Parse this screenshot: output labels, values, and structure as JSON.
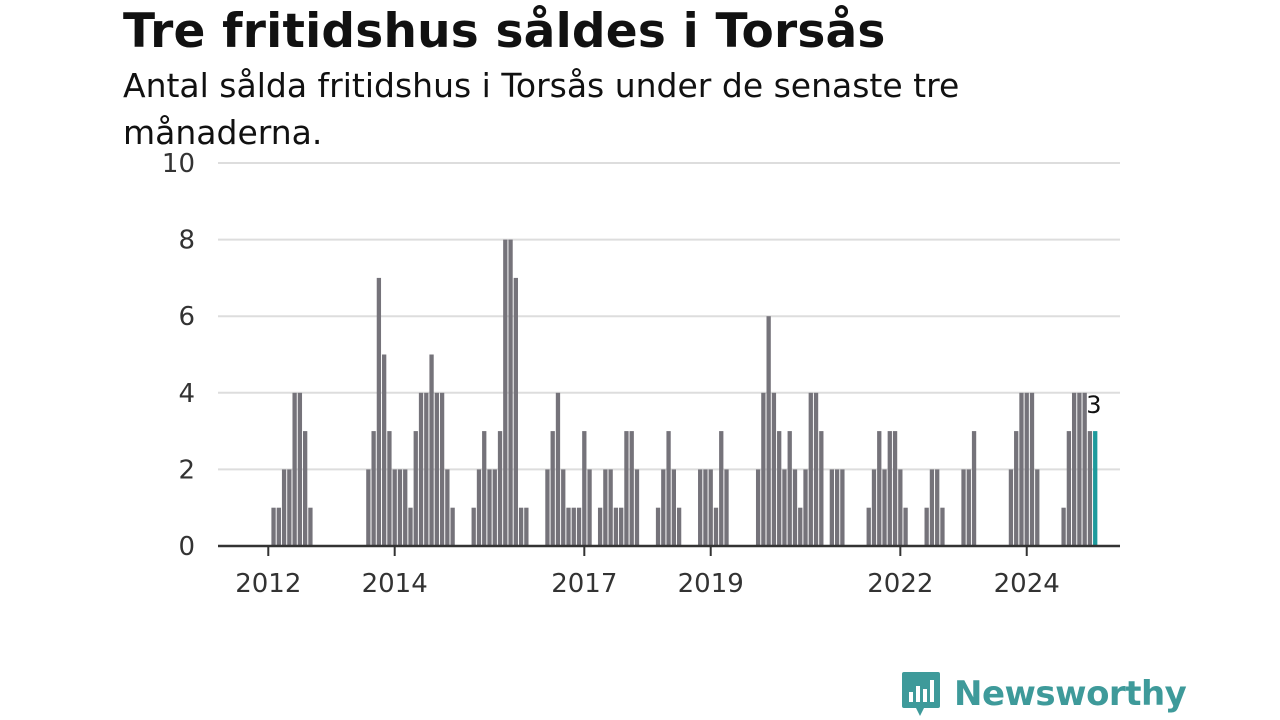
{
  "header": {
    "title": "Tre fritidshus såldes i Torsås",
    "subtitle": "Antal sålda fritidshus i Torsås under de senaste tre månaderna."
  },
  "branding": {
    "name": "Newsworthy",
    "color": "#3e9a9a",
    "icon": "bar-chart-speech-bubble-icon"
  },
  "colors": {
    "bar": "#75737a",
    "highlight": "#1d9a9c",
    "grid": "#dddddd",
    "axis": "#333333",
    "text": "#333333"
  },
  "chart_data": {
    "type": "bar",
    "title": "Tre fritidshus såldes i Torsås",
    "subtitle": "Antal sålda fritidshus i Torsås under de senaste tre månaderna.",
    "xlabel": "",
    "ylabel": "",
    "ylim": [
      0,
      10
    ],
    "yticks": [
      0,
      2,
      4,
      6,
      8,
      10
    ],
    "grid": true,
    "x_tick_labels": [
      {
        "label": "2012",
        "index": 8
      },
      {
        "label": "2014",
        "index": 32
      },
      {
        "label": "2017",
        "index": 68
      },
      {
        "label": "2019",
        "index": 92
      },
      {
        "label": "2022",
        "index": 128
      },
      {
        "label": "2024",
        "index": 152
      }
    ],
    "highlight_label": "3",
    "values": [
      null,
      null,
      null,
      null,
      null,
      null,
      null,
      null,
      null,
      1,
      1,
      2,
      2,
      4,
      4,
      3,
      1,
      null,
      null,
      null,
      null,
      null,
      null,
      null,
      null,
      null,
      null,
      2,
      3,
      7,
      5,
      3,
      2,
      2,
      2,
      1,
      3,
      4,
      4,
      5,
      4,
      4,
      2,
      1,
      null,
      null,
      null,
      1,
      2,
      3,
      2,
      2,
      3,
      8,
      8,
      7,
      1,
      1,
      null,
      null,
      null,
      2,
      3,
      4,
      2,
      1,
      1,
      1,
      3,
      2,
      null,
      1,
      2,
      2,
      1,
      1,
      3,
      3,
      2,
      null,
      null,
      null,
      1,
      2,
      3,
      2,
      1,
      null,
      null,
      null,
      2,
      2,
      2,
      1,
      3,
      2,
      null,
      null,
      null,
      null,
      null,
      2,
      4,
      6,
      4,
      3,
      2,
      3,
      2,
      1,
      2,
      4,
      4,
      3,
      null,
      2,
      2,
      2,
      null,
      null,
      null,
      null,
      1,
      2,
      3,
      2,
      3,
      3,
      2,
      1,
      null,
      null,
      null,
      1,
      2,
      2,
      1,
      null,
      null,
      null,
      2,
      2,
      3,
      null,
      null,
      null,
      null,
      null,
      null,
      2,
      3,
      4,
      4,
      4,
      2,
      null,
      null,
      null,
      null,
      1,
      3,
      4,
      4,
      4,
      3,
      3
    ]
  }
}
